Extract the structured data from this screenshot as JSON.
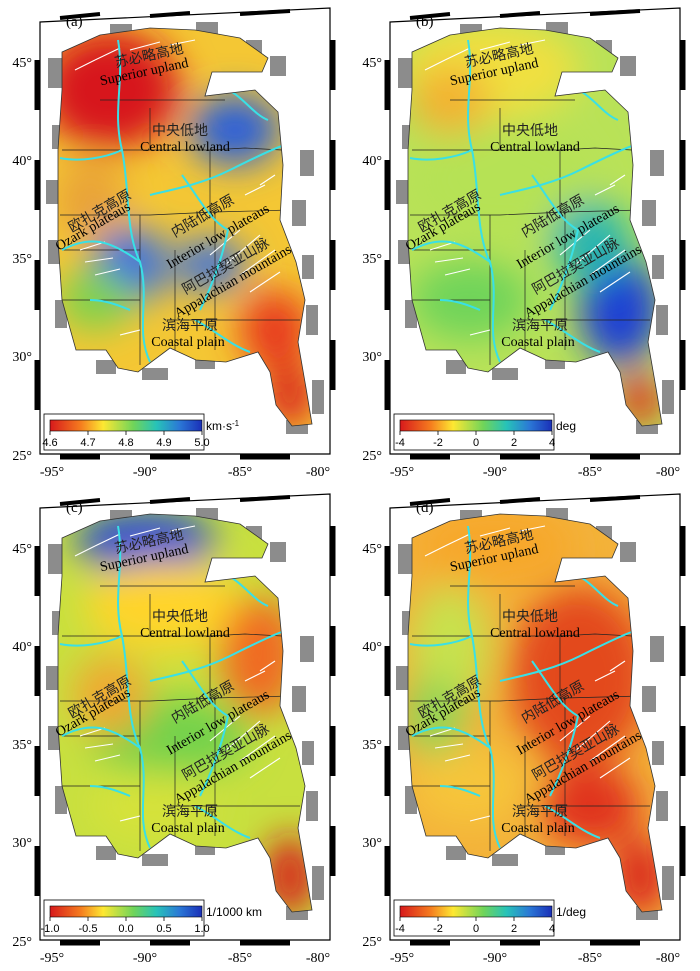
{
  "panels": [
    {
      "id": "a",
      "letter": "(a)",
      "colormap": "rb",
      "colorbar": {
        "ticks": [
          "4.6",
          "4.7",
          "4.8",
          "4.9",
          "5.0"
        ],
        "unit": "km·s",
        "unit_sup": "-1"
      }
    },
    {
      "id": "b",
      "letter": "(b)",
      "colormap": "rb",
      "colorbar": {
        "ticks": [
          "-4",
          "-2",
          "0",
          "2",
          "4"
        ],
        "unit": "deg",
        "unit_sup": ""
      }
    },
    {
      "id": "c",
      "letter": "(c)",
      "colormap": "rb",
      "colorbar": {
        "ticks": [
          "-1.0",
          "-0.5",
          "0.0",
          "0.5",
          "1.0"
        ],
        "unit": "1/1000 km",
        "unit_sup": ""
      }
    },
    {
      "id": "d",
      "letter": "(d)",
      "colormap": "rb",
      "colorbar": {
        "ticks": [
          "-4",
          "-2",
          "0",
          "2",
          "4"
        ],
        "unit": "1/deg",
        "unit_sup": ""
      }
    }
  ],
  "regions": [
    {
      "cn": "苏必略高地",
      "en": "Superior upland"
    },
    {
      "cn": "中央低地",
      "en": "Central lowland"
    },
    {
      "cn": "欧扎克高原",
      "en": "Ozark plateaus"
    },
    {
      "cn": "内陆低高原",
      "en": "Interior low plateaus"
    },
    {
      "cn": "阿巴拉契亚山脉",
      "en": "Appalachian mountains"
    },
    {
      "cn": "滨海平原",
      "en": "Coastal plain"
    }
  ],
  "axes": {
    "lat_labels": [
      "45°",
      "40°",
      "35°",
      "30°",
      "25°"
    ],
    "lon_labels": [
      "-95°",
      "-90°",
      "-85°",
      "-80°"
    ]
  },
  "colors": {
    "river": "#39e0e6",
    "fault": "#ffffff",
    "boundary": "#222222",
    "gray_pad": "#8c8c8c"
  }
}
